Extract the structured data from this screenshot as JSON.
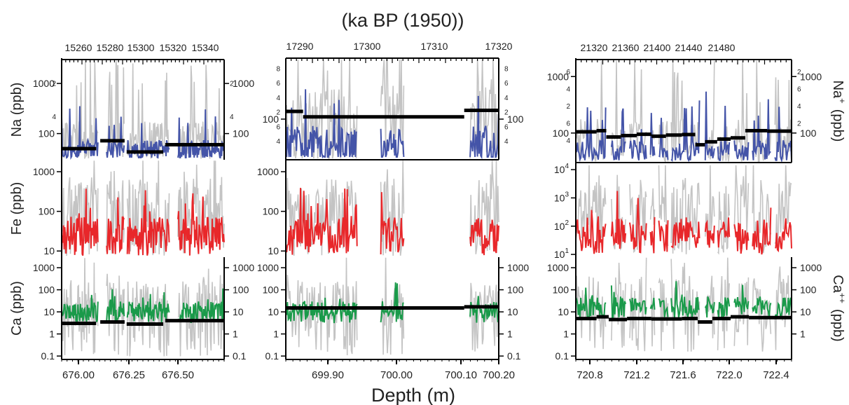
{
  "figure": {
    "top_label": "(ka BP (1950))",
    "bottom_label": "Depth (m)"
  },
  "chart_data": {
    "type": "line",
    "colors": {
      "Na": "#4454a8",
      "Fe": "#e8272a",
      "Ca": "#1a9a4a",
      "raw": "#c4c4c4",
      "mean": "#000000"
    },
    "panels": [
      {
        "id": "left",
        "depth_range": [
          675.95,
          676.75
        ],
        "depth_ticks": [
          "676.00",
          "676.25",
          "676.50"
        ],
        "age_ticks": [
          "15260",
          "15280",
          "15300",
          "15320",
          "15340"
        ],
        "age_range": [
          15246,
          15352
        ],
        "gaps": [
          [
            676.13,
            676.17
          ],
          [
            676.26,
            676.27
          ],
          [
            676.48,
            676.52
          ]
        ],
        "Na": {
          "ylabel": "Na (ppb)",
          "tick_labels": [
            "1000",
            "100"
          ],
          "minor_labels": [
            "2",
            "4",
            "2",
            "4"
          ],
          "ylim_log": [
            30,
            3000
          ],
          "means": [
            {
              "from": 675.95,
              "to": 676.12,
              "value": 50
            },
            {
              "from": 676.14,
              "to": 676.26,
              "value": 72
            },
            {
              "from": 676.27,
              "to": 676.45,
              "value": 43
            },
            {
              "from": 676.46,
              "to": 676.75,
              "value": 60
            }
          ]
        },
        "Fe": {
          "ylabel": "Fe (ppb)",
          "tick_labels": [
            "1000",
            "100",
            "10"
          ],
          "ylim_log": [
            7,
            2000
          ]
        },
        "Ca": {
          "ylabel": "Ca (ppb)",
          "tick_labels": [
            "1000",
            "100",
            "10",
            "1",
            "0.1"
          ],
          "ylim_log": [
            0.07,
            3000
          ],
          "means": [
            {
              "from": 675.95,
              "to": 676.12,
              "value": 3
            },
            {
              "from": 676.14,
              "to": 676.26,
              "value": 3.5
            },
            {
              "from": 676.27,
              "to": 676.45,
              "value": 2.8
            },
            {
              "from": 676.46,
              "to": 676.75,
              "value": 4
            }
          ]
        }
      },
      {
        "id": "middle",
        "depth_range": [
          699.85,
          700.22
        ],
        "depth_ticks": [
          "699.90",
          "700.00",
          "700.10",
          "700.20"
        ],
        "age_ticks": [
          "17290",
          "17300",
          "17310",
          "17320"
        ],
        "age_range": [
          17286,
          17326
        ],
        "gaps": [
          [
            699.975,
            700.015
          ],
          [
            700.055,
            700.17
          ]
        ],
        "Na": {
          "tick_labels": [
            "100"
          ],
          "minor_labels": [
            "8",
            "6",
            "4",
            "2",
            "6",
            "4",
            "8",
            "6",
            "4",
            "2",
            "6",
            "4"
          ],
          "ylim_log": [
            25,
            800
          ],
          "means": [
            {
              "from": 699.85,
              "to": 699.88,
              "value": 130
            },
            {
              "from": 699.88,
              "to": 700.16,
              "value": 108
            },
            {
              "from": 700.16,
              "to": 700.22,
              "value": 135
            }
          ]
        },
        "Fe": {
          "tick_labels": [
            "1000",
            "100",
            "10"
          ],
          "ylim_log": [
            7,
            2000
          ]
        },
        "Ca": {
          "tick_labels": [
            "1000",
            "100",
            "10",
            "1",
            "0.1"
          ],
          "ylim_log": [
            0.07,
            3000
          ],
          "means": [
            {
              "from": 699.85,
              "to": 700.16,
              "value": 15
            },
            {
              "from": 700.16,
              "to": 700.22,
              "value": 17
            }
          ]
        }
      },
      {
        "id": "right",
        "depth_range": [
          720.68,
          722.45
        ],
        "depth_ticks": [
          "720.8",
          "721.2",
          "721.6",
          "722.0",
          "722.4"
        ],
        "age_ticks": [
          "21320",
          "21360",
          "21400",
          "21440",
          "21480"
        ],
        "age_range": [
          21300,
          21490
        ],
        "gaps": [
          [
            720.93,
            720.97
          ],
          [
            721.09,
            721.12
          ],
          [
            721.26,
            721.29
          ],
          [
            721.33,
            721.36
          ],
          [
            721.44,
            721.46
          ],
          [
            721.7,
            721.74
          ],
          [
            721.82,
            721.84
          ],
          [
            721.94,
            721.98
          ],
          [
            722.1,
            722.13
          ],
          [
            722.28,
            722.31
          ]
        ],
        "Na": {
          "ylabel": "Na",
          "superscript": "+",
          "unit": "(ppb)",
          "tick_labels": [
            "1000",
            "100"
          ],
          "minor_labels": [
            "6",
            "4",
            "2",
            "6",
            "4",
            "2",
            "6",
            "4",
            "2"
          ],
          "ylim_log": [
            30,
            2000
          ],
          "means": [
            {
              "from": 720.68,
              "to": 720.85,
              "value": 105
            },
            {
              "from": 720.85,
              "to": 720.93,
              "value": 110
            },
            {
              "from": 720.93,
              "to": 721.05,
              "value": 85
            },
            {
              "from": 721.05,
              "to": 721.18,
              "value": 90
            },
            {
              "from": 721.18,
              "to": 721.3,
              "value": 95
            },
            {
              "from": 721.3,
              "to": 721.42,
              "value": 88
            },
            {
              "from": 721.42,
              "to": 721.55,
              "value": 92
            },
            {
              "from": 721.55,
              "to": 721.66,
              "value": 94
            },
            {
              "from": 721.66,
              "to": 721.74,
              "value": 62
            },
            {
              "from": 721.74,
              "to": 721.84,
              "value": 70
            },
            {
              "from": 721.84,
              "to": 721.95,
              "value": 78
            },
            {
              "from": 721.95,
              "to": 722.07,
              "value": 82
            },
            {
              "from": 722.07,
              "to": 722.25,
              "value": 110
            },
            {
              "from": 722.25,
              "to": 722.45,
              "value": 108
            }
          ]
        },
        "Fe": {
          "tick_labels": [
            "10",
            "10",
            "10",
            "10"
          ],
          "tick_exponents": [
            "4",
            "3",
            "2",
            "1"
          ],
          "ylim_log": [
            8,
            15000
          ]
        },
        "Ca": {
          "ylabel": "Ca",
          "superscript": "++",
          "unit": "(ppb)",
          "tick_labels_left": [
            "1000",
            "100",
            "10",
            "1",
            "0.1"
          ],
          "tick_labels_right": [
            "1000",
            "100",
            "10",
            "1"
          ],
          "ylim_log": [
            0.07,
            3000
          ],
          "means": [
            {
              "from": 720.68,
              "to": 720.85,
              "value": 5
            },
            {
              "from": 720.85,
              "to": 720.95,
              "value": 6
            },
            {
              "from": 720.95,
              "to": 721.1,
              "value": 4.5
            },
            {
              "from": 721.1,
              "to": 721.3,
              "value": 5
            },
            {
              "from": 721.3,
              "to": 721.55,
              "value": 4.8
            },
            {
              "from": 721.55,
              "to": 721.68,
              "value": 5
            },
            {
              "from": 721.68,
              "to": 721.8,
              "value": 3.5
            },
            {
              "from": 721.8,
              "to": 721.95,
              "value": 5
            },
            {
              "from": 721.95,
              "to": 722.1,
              "value": 6
            },
            {
              "from": 722.1,
              "to": 722.45,
              "value": 5.5
            }
          ]
        }
      }
    ]
  }
}
